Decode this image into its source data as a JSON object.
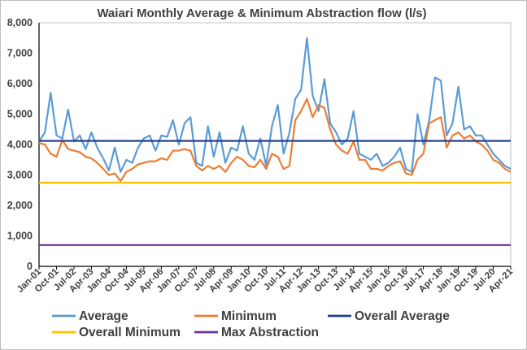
{
  "chart_data": {
    "type": "line",
    "title": "Waiari Monthly Average & Minimum Abstraction flow (l/s)",
    "xlabel": "",
    "ylabel": "",
    "ylim": [
      0,
      8000
    ],
    "y_ticks": [
      "0",
      "1,000",
      "2,000",
      "3,000",
      "4,000",
      "5,000",
      "6,000",
      "7,000",
      "8,000"
    ],
    "grid": "none",
    "legend_position": "bottom",
    "x_tick_labels": [
      "Jan-01",
      "Oct-01",
      "Jul-02",
      "Apr-03",
      "Jan-04",
      "Oct-04",
      "Jul-05",
      "Apr-06",
      "Jan-07",
      "Oct-07",
      "Jul-08",
      "Apr-09",
      "Jan-10",
      "Oct-10",
      "Jul-11",
      "Apr-12",
      "Jan-13",
      "Oct-13",
      "Jul-14",
      "Apr-15",
      "Jan-16",
      "Oct-16",
      "Jul-17",
      "Apr-18",
      "Jan-19",
      "Oct-19",
      "Jul-20",
      "Apr-21"
    ],
    "x_start": "Jan-01",
    "x_end": "Apr-21",
    "series": [
      {
        "name": "Average",
        "color": "#5b9bd5",
        "points": [
          [
            "Jan-01",
            4100
          ],
          [
            "Apr-01",
            4400
          ],
          [
            "Jul-01",
            5700
          ],
          [
            "Oct-01",
            4300
          ],
          [
            "Jan-02",
            4200
          ],
          [
            "Apr-02",
            5150
          ],
          [
            "Jul-02",
            4100
          ],
          [
            "Oct-02",
            4300
          ],
          [
            "Jan-03",
            3850
          ],
          [
            "Apr-03",
            4400
          ],
          [
            "Jul-03",
            3900
          ],
          [
            "Oct-03",
            3550
          ],
          [
            "Jan-04",
            3150
          ],
          [
            "Apr-04",
            3900
          ],
          [
            "Jul-04",
            3100
          ],
          [
            "Oct-04",
            3500
          ],
          [
            "Jan-05",
            3400
          ],
          [
            "Apr-05",
            3900
          ],
          [
            "Jul-05",
            4200
          ],
          [
            "Oct-05",
            4300
          ],
          [
            "Jan-06",
            3800
          ],
          [
            "Apr-06",
            4300
          ],
          [
            "Jul-06",
            4250
          ],
          [
            "Oct-06",
            4800
          ],
          [
            "Jan-07",
            4000
          ],
          [
            "Apr-07",
            4700
          ],
          [
            "Jul-07",
            4900
          ],
          [
            "Oct-07",
            3400
          ],
          [
            "Jan-08",
            3300
          ],
          [
            "Apr-08",
            4600
          ],
          [
            "Jul-08",
            3600
          ],
          [
            "Oct-08",
            4400
          ],
          [
            "Jan-09",
            3400
          ],
          [
            "Apr-09",
            3900
          ],
          [
            "Jul-09",
            3800
          ],
          [
            "Oct-09",
            4600
          ],
          [
            "Jan-10",
            3700
          ],
          [
            "Apr-10",
            3500
          ],
          [
            "Jul-10",
            4200
          ],
          [
            "Oct-10",
            3300
          ],
          [
            "Jan-11",
            4600
          ],
          [
            "Apr-11",
            5300
          ],
          [
            "Jul-11",
            3700
          ],
          [
            "Oct-11",
            4400
          ],
          [
            "Jan-12",
            5500
          ],
          [
            "Apr-12",
            5800
          ],
          [
            "Jul-12",
            7500
          ],
          [
            "Oct-12",
            5600
          ],
          [
            "Jan-13",
            5100
          ],
          [
            "Apr-13",
            6150
          ],
          [
            "Jul-13",
            4700
          ],
          [
            "Oct-13",
            4400
          ],
          [
            "Jan-14",
            4000
          ],
          [
            "Apr-14",
            4200
          ],
          [
            "Jul-14",
            5100
          ],
          [
            "Oct-14",
            3700
          ],
          [
            "Jan-15",
            3600
          ],
          [
            "Apr-15",
            3500
          ],
          [
            "Jul-15",
            3700
          ],
          [
            "Oct-15",
            3300
          ],
          [
            "Jan-16",
            3400
          ],
          [
            "Apr-16",
            3600
          ],
          [
            "Jul-16",
            3900
          ],
          [
            "Oct-16",
            3200
          ],
          [
            "Jan-17",
            3100
          ],
          [
            "Apr-17",
            5000
          ],
          [
            "Jul-17",
            4000
          ],
          [
            "Oct-17",
            4800
          ],
          [
            "Jan-18",
            6200
          ],
          [
            "Apr-18",
            6100
          ],
          [
            "Jul-18",
            4300
          ],
          [
            "Oct-18",
            4700
          ],
          [
            "Jan-19",
            5900
          ],
          [
            "Apr-19",
            4500
          ],
          [
            "Jul-19",
            4600
          ],
          [
            "Oct-19",
            4300
          ],
          [
            "Jan-20",
            4300
          ],
          [
            "Apr-20",
            4000
          ],
          [
            "Jul-20",
            3700
          ],
          [
            "Oct-20",
            3500
          ],
          [
            "Jan-21",
            3300
          ],
          [
            "Apr-21",
            3200
          ]
        ]
      },
      {
        "name": "Minimum",
        "color": "#ed7d31",
        "points": [
          [
            "Jan-01",
            4050
          ],
          [
            "Apr-01",
            4000
          ],
          [
            "Jul-01",
            3700
          ],
          [
            "Oct-01",
            3600
          ],
          [
            "Jan-02",
            4150
          ],
          [
            "Apr-02",
            3850
          ],
          [
            "Jul-02",
            3800
          ],
          [
            "Oct-02",
            3750
          ],
          [
            "Jan-03",
            3600
          ],
          [
            "Apr-03",
            3550
          ],
          [
            "Jul-03",
            3400
          ],
          [
            "Oct-03",
            3200
          ],
          [
            "Jan-04",
            3000
          ],
          [
            "Apr-04",
            3050
          ],
          [
            "Jul-04",
            2800
          ],
          [
            "Oct-04",
            3100
          ],
          [
            "Jan-05",
            3200
          ],
          [
            "Apr-05",
            3350
          ],
          [
            "Jul-05",
            3400
          ],
          [
            "Oct-05",
            3450
          ],
          [
            "Jan-06",
            3450
          ],
          [
            "Apr-06",
            3550
          ],
          [
            "Jul-06",
            3500
          ],
          [
            "Oct-06",
            3800
          ],
          [
            "Jan-07",
            3800
          ],
          [
            "Apr-07",
            3850
          ],
          [
            "Jul-07",
            3800
          ],
          [
            "Oct-07",
            3300
          ],
          [
            "Jan-08",
            3150
          ],
          [
            "Apr-08",
            3300
          ],
          [
            "Jul-08",
            3200
          ],
          [
            "Oct-08",
            3300
          ],
          [
            "Jan-09",
            3100
          ],
          [
            "Apr-09",
            3400
          ],
          [
            "Jul-09",
            3600
          ],
          [
            "Oct-09",
            3500
          ],
          [
            "Jan-10",
            3300
          ],
          [
            "Apr-10",
            3250
          ],
          [
            "Jul-10",
            3500
          ],
          [
            "Oct-10",
            3200
          ],
          [
            "Jan-11",
            3700
          ],
          [
            "Apr-11",
            3600
          ],
          [
            "Jul-11",
            3200
          ],
          [
            "Oct-11",
            3300
          ],
          [
            "Jan-12",
            4800
          ],
          [
            "Apr-12",
            5100
          ],
          [
            "Jul-12",
            5500
          ],
          [
            "Oct-12",
            4900
          ],
          [
            "Jan-13",
            5300
          ],
          [
            "Apr-13",
            5200
          ],
          [
            "Jul-13",
            4500
          ],
          [
            "Oct-13",
            4000
          ],
          [
            "Jan-14",
            3800
          ],
          [
            "Apr-14",
            3700
          ],
          [
            "Jul-14",
            4100
          ],
          [
            "Oct-14",
            3500
          ],
          [
            "Jan-15",
            3500
          ],
          [
            "Apr-15",
            3200
          ],
          [
            "Jul-15",
            3200
          ],
          [
            "Oct-15",
            3150
          ],
          [
            "Jan-16",
            3300
          ],
          [
            "Apr-16",
            3400
          ],
          [
            "Jul-16",
            3450
          ],
          [
            "Oct-16",
            3050
          ],
          [
            "Jan-17",
            3000
          ],
          [
            "Apr-17",
            3500
          ],
          [
            "Jul-17",
            3700
          ],
          [
            "Oct-17",
            4700
          ],
          [
            "Jan-18",
            4800
          ],
          [
            "Apr-18",
            4900
          ],
          [
            "Jul-18",
            3900
          ],
          [
            "Oct-18",
            4300
          ],
          [
            "Jan-19",
            4400
          ],
          [
            "Apr-19",
            4200
          ],
          [
            "Jul-19",
            4300
          ],
          [
            "Oct-19",
            4100
          ],
          [
            "Jan-20",
            4000
          ],
          [
            "Apr-20",
            3800
          ],
          [
            "Jul-20",
            3500
          ],
          [
            "Oct-20",
            3400
          ],
          [
            "Jan-21",
            3200
          ],
          [
            "Apr-21",
            3100
          ]
        ]
      },
      {
        "name": "Overall Average",
        "color": "#1f3f8f",
        "constant": 4120
      },
      {
        "name": "Overall Minimum",
        "color": "#ffc000",
        "constant": 2750
      },
      {
        "name": "Max Abstraction",
        "color": "#7030a0",
        "constant": 700
      }
    ]
  }
}
